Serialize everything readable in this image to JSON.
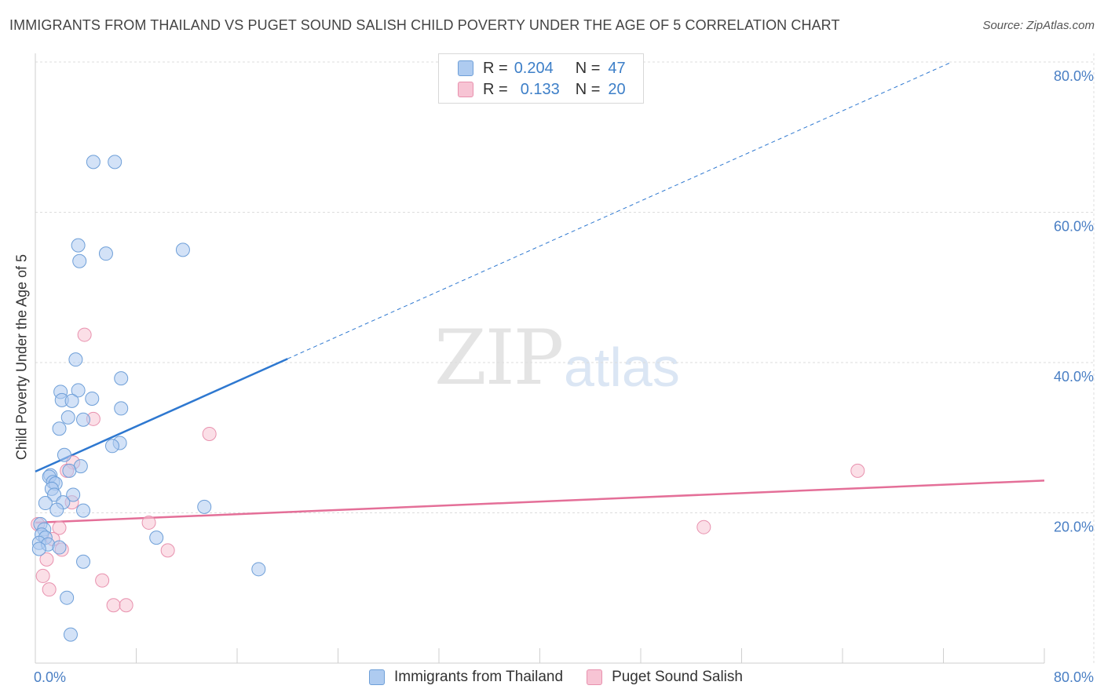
{
  "header": {
    "title": "IMMIGRANTS FROM THAILAND VS PUGET SOUND SALISH CHILD POVERTY UNDER THE AGE OF 5 CORRELATION CHART",
    "source": "Source: ZipAtlas.com"
  },
  "watermark": {
    "zip": "ZIP",
    "atlas": "atlas"
  },
  "legend": {
    "rows": [
      {
        "r_label": "R =",
        "r_value": "0.204",
        "n_label": "N =",
        "n_value": "47"
      },
      {
        "r_label": "R =",
        "r_value": "0.133",
        "n_label": "N =",
        "n_value": "20"
      }
    ]
  },
  "bottom_legend": {
    "series1": "Immigrants from Thailand",
    "series2": "Puget Sound Salish"
  },
  "colors": {
    "blue_fill": "#aecbf0",
    "blue_stroke": "#6e9fd8",
    "blue_line": "#2e78d0",
    "pink_fill": "#f7c4d4",
    "pink_stroke": "#e891ae",
    "pink_line": "#e46f98",
    "tick_label": "#4a7fc4"
  },
  "chart_data": {
    "type": "scatter",
    "title": "IMMIGRANTS FROM THAILAND VS PUGET SOUND SALISH CHILD POVERTY UNDER THE AGE OF 5 CORRELATION CHART",
    "xlabel": "",
    "ylabel": "Child Poverty Under the Age of 5",
    "xlim": [
      0,
      80
    ],
    "ylim": [
      0,
      80
    ],
    "x_tick_labels": [
      "0.0%",
      "80.0%"
    ],
    "y_ticks": [
      20,
      40,
      60,
      80
    ],
    "y_tick_labels": [
      "20.0%",
      "40.0%",
      "60.0%",
      "80.0%"
    ],
    "series": [
      {
        "name": "Immigrants from Thailand",
        "r": 0.204,
        "n": 47,
        "points": [
          [
            4.6,
            66.7
          ],
          [
            6.3,
            66.7
          ],
          [
            3.4,
            55.6
          ],
          [
            5.6,
            54.5
          ],
          [
            11.7,
            55.0
          ],
          [
            3.5,
            53.5
          ],
          [
            3.2,
            40.4
          ],
          [
            6.8,
            37.9
          ],
          [
            2.0,
            36.1
          ],
          [
            3.4,
            36.3
          ],
          [
            4.5,
            35.2
          ],
          [
            2.1,
            35.0
          ],
          [
            2.9,
            34.9
          ],
          [
            6.8,
            33.9
          ],
          [
            2.6,
            32.7
          ],
          [
            3.8,
            32.4
          ],
          [
            1.9,
            31.2
          ],
          [
            6.7,
            29.3
          ],
          [
            6.1,
            28.9
          ],
          [
            2.3,
            27.7
          ],
          [
            3.6,
            26.2
          ],
          [
            2.7,
            25.6
          ],
          [
            1.2,
            25.0
          ],
          [
            1.1,
            24.8
          ],
          [
            1.4,
            24.1
          ],
          [
            1.6,
            23.9
          ],
          [
            1.3,
            23.2
          ],
          [
            1.5,
            22.4
          ],
          [
            3.0,
            22.4
          ],
          [
            2.2,
            21.4
          ],
          [
            0.8,
            21.3
          ],
          [
            13.4,
            20.8
          ],
          [
            1.7,
            20.4
          ],
          [
            3.8,
            20.3
          ],
          [
            0.4,
            18.5
          ],
          [
            0.7,
            17.8
          ],
          [
            0.5,
            17.1
          ],
          [
            0.8,
            16.7
          ],
          [
            9.6,
            16.7
          ],
          [
            0.3,
            16.0
          ],
          [
            1.0,
            15.8
          ],
          [
            1.9,
            15.4
          ],
          [
            0.3,
            15.2
          ],
          [
            3.8,
            13.5
          ],
          [
            17.7,
            12.5
          ],
          [
            2.5,
            8.7
          ],
          [
            2.8,
            3.8
          ]
        ],
        "trend": {
          "x": [
            0,
            80
          ],
          "y": [
            25.5,
            85.5
          ],
          "solid_until_x": 20
        }
      },
      {
        "name": "Puget Sound Salish",
        "r": 0.133,
        "n": 20,
        "points": [
          [
            3.9,
            43.7
          ],
          [
            13.8,
            30.5
          ],
          [
            4.6,
            32.5
          ],
          [
            3.0,
            26.7
          ],
          [
            2.5,
            25.6
          ],
          [
            65.2,
            25.6
          ],
          [
            2.9,
            21.4
          ],
          [
            9.0,
            18.7
          ],
          [
            0.2,
            18.5
          ],
          [
            1.9,
            18.0
          ],
          [
            53.0,
            18.1
          ],
          [
            1.4,
            16.5
          ],
          [
            2.1,
            15.1
          ],
          [
            10.5,
            15.0
          ],
          [
            0.9,
            13.8
          ],
          [
            0.6,
            11.6
          ],
          [
            5.3,
            11.0
          ],
          [
            1.1,
            9.8
          ],
          [
            6.2,
            7.7
          ],
          [
            7.2,
            7.7
          ]
        ],
        "trend": {
          "x": [
            0,
            80
          ],
          "y": [
            18.7,
            24.3
          ]
        }
      }
    ]
  }
}
